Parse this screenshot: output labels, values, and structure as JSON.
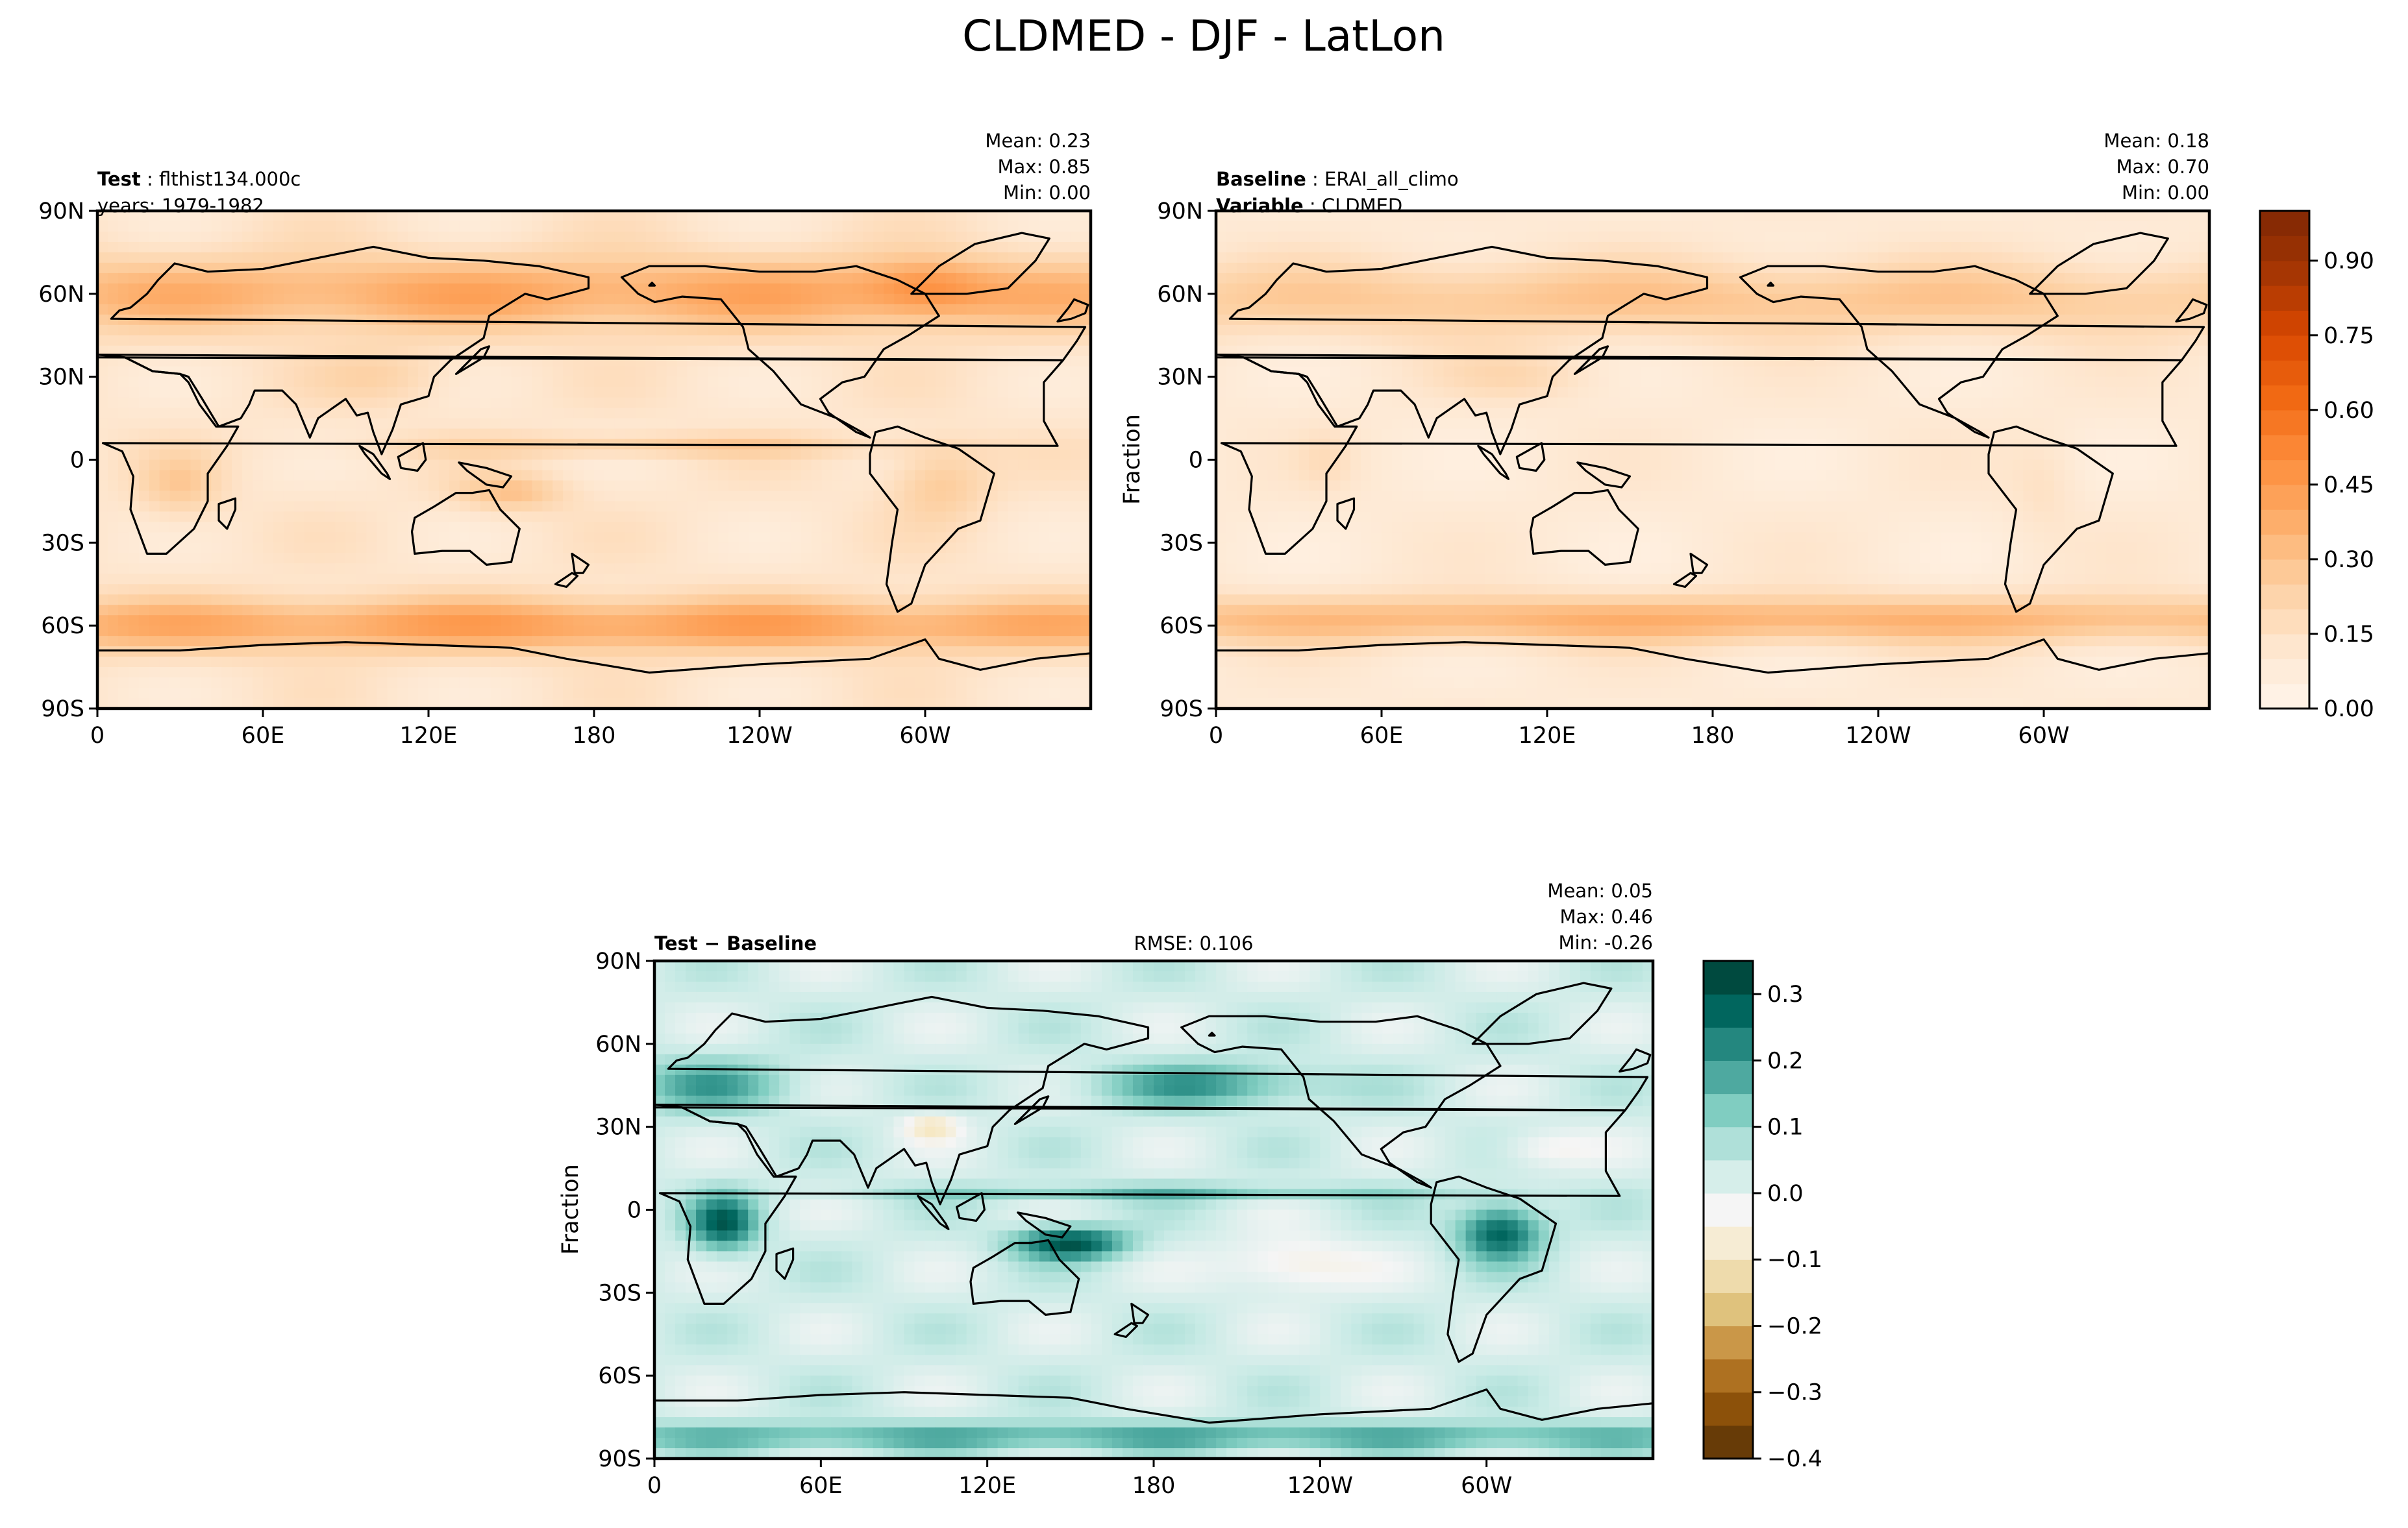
{
  "figure": {
    "title": "CLDMED - DJF - LatLon"
  },
  "colors": {
    "oranges": [
      "#fff5eb",
      "#fee6ce",
      "#fdd0a2",
      "#fdae6b",
      "#fd8d3c",
      "#f16913",
      "#d94801",
      "#a63603",
      "#7f2704"
    ],
    "brbg": [
      "#543005",
      "#8c510a",
      "#bf812d",
      "#dfc27d",
      "#f6e8c3",
      "#f5f5f5",
      "#c7eae5",
      "#80cdc1",
      "#35978f",
      "#01665e",
      "#003c30"
    ]
  },
  "chart_data": [
    {
      "type": "heatmap",
      "id": "test",
      "header_left": [
        {
          "bold": "Test",
          "text": "flthist134.000c"
        },
        {
          "bold": "",
          "text": "years: 1979-1982"
        }
      ],
      "stats": {
        "mean": "Mean:  0.23",
        "max": "Max:  0.85",
        "min": "Min:  0.00"
      },
      "ylabel": "",
      "xticks": [
        "0",
        "60E",
        "120E",
        "180",
        "120W",
        "60W"
      ],
      "yticks": [
        "90N",
        "60N",
        "30N",
        "0",
        "30S",
        "60S",
        "90S"
      ],
      "colormap": "oranges",
      "colorbar": false
    },
    {
      "type": "heatmap",
      "id": "baseline",
      "header_left": [
        {
          "bold": "Baseline",
          "text": "ERAI_all_climo"
        },
        {
          "bold": "Variable",
          "text": "CLDMED"
        }
      ],
      "stats": {
        "mean": "Mean:  0.18",
        "max": "Max:  0.70",
        "min": "Min:  0.00"
      },
      "ylabel": "Fraction",
      "xticks": [
        "0",
        "60E",
        "120E",
        "180",
        "120W",
        "60W"
      ],
      "yticks": [
        "90N",
        "60N",
        "30N",
        "0",
        "30S",
        "60S",
        "90S"
      ],
      "colormap": "oranges",
      "colorbar": true,
      "colorbar_range": [
        0.0,
        1.0
      ],
      "colorbar_ticks": [
        "0.00",
        "0.15",
        "0.30",
        "0.45",
        "0.60",
        "0.75",
        "0.90"
      ],
      "colorbar_tick_values": [
        0.0,
        0.15,
        0.3,
        0.45,
        0.6,
        0.75,
        0.9
      ]
    },
    {
      "type": "heatmap",
      "id": "diff",
      "header_left": [
        {
          "bold": "Test − Baseline",
          "text": ""
        }
      ],
      "rmse": "RMSE: 0.106",
      "stats": {
        "mean": "Mean:  0.05",
        "max": "Max:  0.46",
        "min": "Min: -0.26"
      },
      "ylabel": "Fraction",
      "xticks": [
        "0",
        "60E",
        "120E",
        "180",
        "120W",
        "60W"
      ],
      "yticks": [
        "90N",
        "60N",
        "30N",
        "0",
        "30S",
        "60S",
        "90S"
      ],
      "colormap": "brbg",
      "colorbar": true,
      "colorbar_range": [
        -0.4,
        0.35
      ],
      "colorbar_ticks": [
        "0.3",
        "0.2",
        "0.1",
        "0.0",
        "−0.1",
        "−0.2",
        "−0.3",
        "−0.4"
      ],
      "colorbar_tick_values": [
        0.3,
        0.2,
        0.1,
        0.0,
        -0.1,
        -0.2,
        -0.3,
        -0.4
      ]
    }
  ]
}
